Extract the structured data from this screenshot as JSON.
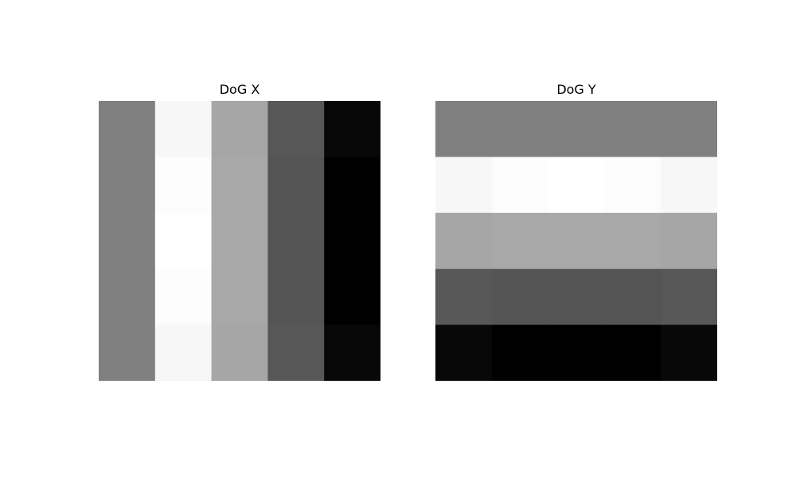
{
  "chart_data": [
    {
      "type": "heatmap",
      "title": "DoG X",
      "colormap": "gray",
      "grid": false,
      "axes_visible": false,
      "rows": 5,
      "cols": 5,
      "values": [
        [
          0.5,
          0.97,
          0.65,
          0.34,
          0.03
        ],
        [
          0.5,
          0.99,
          0.66,
          0.33,
          0.0
        ],
        [
          0.5,
          1.0,
          0.66,
          0.33,
          0.0
        ],
        [
          0.5,
          0.99,
          0.66,
          0.33,
          0.0
        ],
        [
          0.5,
          0.97,
          0.65,
          0.34,
          0.03
        ]
      ]
    },
    {
      "type": "heatmap",
      "title": "DoG Y",
      "colormap": "gray",
      "grid": false,
      "axes_visible": false,
      "rows": 5,
      "cols": 5,
      "values": [
        [
          0.5,
          0.5,
          0.5,
          0.5,
          0.5
        ],
        [
          0.97,
          0.99,
          1.0,
          0.99,
          0.97
        ],
        [
          0.65,
          0.66,
          0.66,
          0.66,
          0.65
        ],
        [
          0.34,
          0.33,
          0.33,
          0.33,
          0.34
        ],
        [
          0.03,
          0.0,
          0.0,
          0.0,
          0.03
        ]
      ]
    }
  ]
}
